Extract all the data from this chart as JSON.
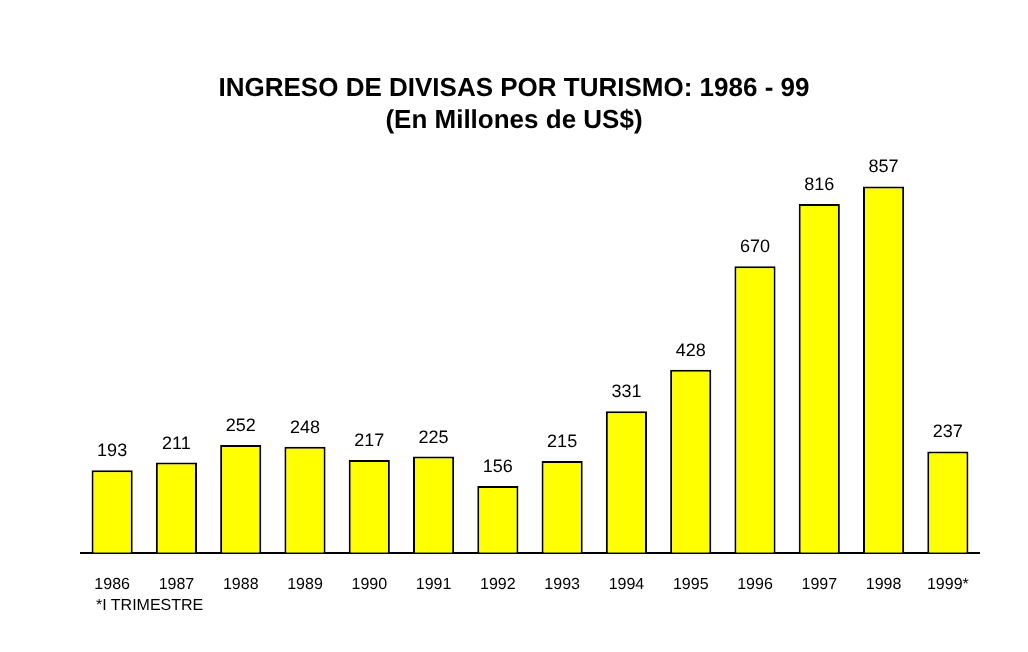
{
  "chart_data": {
    "type": "bar",
    "title": "INGRESO DE DIVISAS POR TURISMO: 1986 - 99",
    "subtitle": "(En Millones de US$)",
    "categories": [
      "1986",
      "1987",
      "1988",
      "1989",
      "1990",
      "1991",
      "1992",
      "1993",
      "1994",
      "1995",
      "1996",
      "1997",
      "1998",
      "1999*"
    ],
    "values": [
      193,
      211,
      252,
      248,
      217,
      225,
      156,
      215,
      331,
      428,
      670,
      816,
      857,
      237
    ],
    "color": "#ffff00",
    "data_labels": true,
    "grid": false,
    "legend": false,
    "annotations": [
      "*I TRIMESTRE"
    ]
  }
}
